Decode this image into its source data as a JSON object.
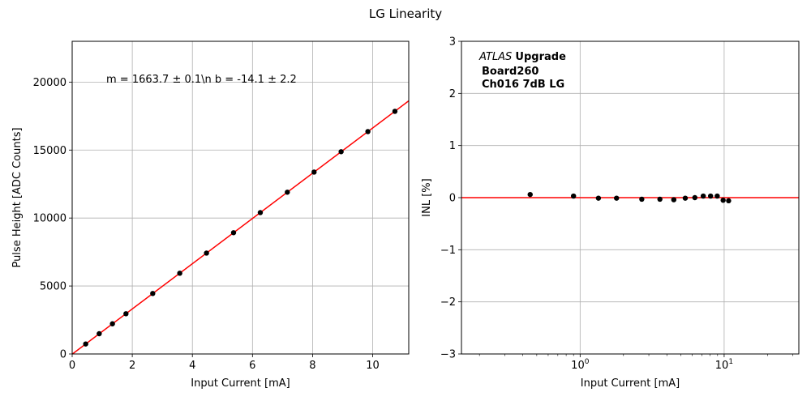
{
  "figure_title": "LG Linearity",
  "chart_data": [
    {
      "type": "scatter",
      "title": "",
      "xlabel": "Input Current [mA]",
      "ylabel": "Pulse Height [ADC Counts]",
      "xlim": [
        0,
        11.2
      ],
      "ylim": [
        0,
        23000
      ],
      "xticks": [
        0,
        2,
        4,
        6,
        8,
        10
      ],
      "xtick_labels": [
        "0",
        "2",
        "4",
        "6",
        "8",
        "10"
      ],
      "yticks": [
        0,
        5000,
        10000,
        15000,
        20000
      ],
      "ytick_labels": [
        "0",
        "5000",
        "10000",
        "15000",
        "20000"
      ],
      "grid": true,
      "annotation": "m = 1663.7 ± 0.1\\n b = -14.1 ± 2.2",
      "series": [
        {
          "kind": "points",
          "color": "#000000",
          "x": [
            0.45,
            0.9,
            1.34,
            1.79,
            2.68,
            3.58,
            4.47,
            5.37,
            6.26,
            7.16,
            8.05,
            8.95,
            9.84,
            10.74
          ],
          "y": [
            735,
            1490,
            2220,
            2960,
            4450,
            5940,
            7420,
            8920,
            10400,
            11900,
            13380,
            14880,
            16360,
            17850
          ]
        },
        {
          "kind": "fit-line",
          "color": "#ff0000",
          "slope": 1663.7,
          "intercept": -14.1
        }
      ]
    },
    {
      "type": "scatter",
      "title": "",
      "xlabel": "Input Current [mA]",
      "ylabel": "INL [%]",
      "xscale": "log",
      "xlim": [
        0.15,
        33
      ],
      "ylim": [
        -3,
        3
      ],
      "xticks": [
        1,
        10
      ],
      "xtick_labels": [
        "10⁰",
        "10¹"
      ],
      "yticks": [
        -3,
        -2,
        -1,
        0,
        1,
        2,
        3
      ],
      "ytick_labels": [
        "−3",
        "−2",
        "−1",
        "0",
        "1",
        "2",
        "3"
      ],
      "grid": true,
      "annotation_lines": [
        {
          "italic": "ATLAS",
          "bold": "Upgrade"
        },
        {
          "italic": "",
          "bold": "Board260"
        },
        {
          "italic": "",
          "bold": "Ch016 7dB LG"
        }
      ],
      "series": [
        {
          "kind": "points",
          "color": "#000000",
          "x": [
            0.45,
            0.9,
            1.34,
            1.79,
            2.68,
            3.58,
            4.47,
            5.37,
            6.26,
            7.16,
            8.05,
            8.95,
            9.84,
            10.74
          ],
          "y": [
            0.06,
            0.03,
            -0.01,
            -0.01,
            -0.03,
            -0.03,
            -0.04,
            -0.01,
            0.0,
            0.03,
            0.03,
            0.03,
            -0.05,
            -0.06
          ]
        },
        {
          "kind": "hline",
          "color": "#ff0000",
          "y": 0
        }
      ]
    }
  ]
}
